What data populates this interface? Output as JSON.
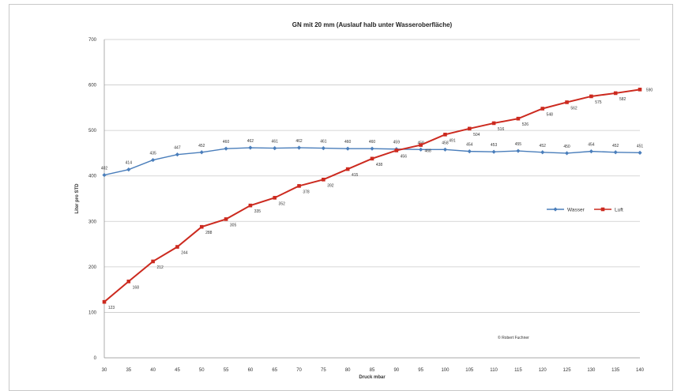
{
  "chart_data": {
    "type": "line",
    "title": "GN mit 20 mm (Auslauf halb unter Wasseroberfläche)",
    "xlabel": "Druck mbar",
    "ylabel": "Liter pro STD",
    "x": [
      30,
      35,
      40,
      45,
      50,
      55,
      60,
      65,
      70,
      75,
      80,
      85,
      90,
      95,
      100,
      105,
      110,
      115,
      120,
      125,
      130,
      135,
      140
    ],
    "x_tick_labels": [
      "30",
      "35",
      "40",
      "45",
      "50",
      "55",
      "60",
      "65",
      "70",
      "75",
      "80",
      "85",
      "90",
      "95",
      "100",
      "105",
      "110",
      "115",
      "120",
      "125",
      "130",
      "135",
      "140"
    ],
    "ylim": [
      0,
      700
    ],
    "y_ticks": [
      "0",
      "100",
      "200",
      "300",
      "400",
      "500",
      "600",
      "700"
    ],
    "grid": true,
    "legend_position": "right",
    "series": [
      {
        "name": "Wasser",
        "color": "#4a7ebb",
        "marker": "diamond",
        "values": [
          402,
          414,
          435,
          447,
          452,
          460,
          462,
          461,
          462,
          461,
          460,
          460,
          459,
          458,
          458,
          454,
          453,
          455,
          452,
          450,
          454,
          452,
          451
        ],
        "labels": [
          "402",
          "414",
          "435",
          "447",
          "452",
          "460",
          "462",
          "461",
          "462",
          "461",
          "460",
          "460",
          "459",
          "458",
          "458",
          "454",
          "453",
          "455",
          "452",
          "450",
          "454",
          "452",
          "451"
        ]
      },
      {
        "name": "Luft",
        "color": "#cc2a1f",
        "marker": "square",
        "values": [
          123,
          168,
          212,
          244,
          288,
          305,
          335,
          352,
          378,
          392,
          415,
          438,
          456,
          468,
          491,
          504,
          516,
          526,
          548,
          562,
          575,
          582,
          590
        ],
        "labels": [
          "123",
          "168",
          "212",
          "244",
          "288",
          "305",
          "335",
          "352",
          "378",
          "392",
          "415",
          "438",
          "456",
          "468",
          "491",
          "504",
          "516",
          "526",
          "548",
          "562",
          "575",
          "582",
          "590"
        ]
      }
    ],
    "annotation": "© Robert Fuchner"
  }
}
